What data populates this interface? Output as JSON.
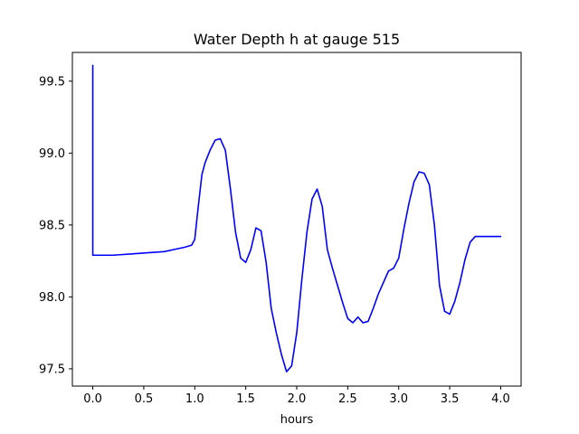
{
  "chart_data": {
    "type": "line",
    "title": "Water Depth h at gauge 515",
    "xlabel": "hours",
    "ylabel": "",
    "xlim": [
      -0.2,
      4.2
    ],
    "ylim": [
      97.38,
      99.7
    ],
    "xticks": [
      0.0,
      0.5,
      1.0,
      1.5,
      2.0,
      2.5,
      3.0,
      3.5,
      4.0
    ],
    "xtick_labels": [
      "0.0",
      "0.5",
      "1.0",
      "1.5",
      "2.0",
      "2.5",
      "3.0",
      "3.5",
      "4.0"
    ],
    "yticks": [
      97.5,
      98.0,
      98.5,
      99.0,
      99.5
    ],
    "ytick_labels": [
      "97.5",
      "98.0",
      "98.5",
      "99.0",
      "99.5"
    ],
    "grid": false,
    "line_color": "#0000ff",
    "series": [
      {
        "name": "",
        "x": [
          0.0,
          0.0,
          0.2,
          0.4,
          0.6,
          0.7,
          0.8,
          0.9,
          0.97,
          1.0,
          1.03,
          1.07,
          1.1,
          1.15,
          1.2,
          1.25,
          1.3,
          1.35,
          1.4,
          1.45,
          1.5,
          1.55,
          1.6,
          1.65,
          1.7,
          1.75,
          1.8,
          1.85,
          1.9,
          1.95,
          2.0,
          2.05,
          2.1,
          2.15,
          2.2,
          2.25,
          2.3,
          2.35,
          2.4,
          2.45,
          2.5,
          2.55,
          2.6,
          2.65,
          2.7,
          2.75,
          2.8,
          2.85,
          2.9,
          2.95,
          3.0,
          3.05,
          3.1,
          3.15,
          3.2,
          3.25,
          3.3,
          3.35,
          3.4,
          3.45,
          3.5,
          3.55,
          3.6,
          3.65,
          3.7,
          3.75,
          3.8,
          3.85,
          3.9,
          3.95,
          4.0
        ],
        "y": [
          99.61,
          98.29,
          98.29,
          98.3,
          98.31,
          98.315,
          98.33,
          98.345,
          98.36,
          98.4,
          98.6,
          98.85,
          98.93,
          99.02,
          99.09,
          99.1,
          99.02,
          98.75,
          98.45,
          98.27,
          98.24,
          98.33,
          98.48,
          98.46,
          98.24,
          97.92,
          97.75,
          97.6,
          97.48,
          97.52,
          97.75,
          98.12,
          98.45,
          98.68,
          98.75,
          98.63,
          98.33,
          98.2,
          98.08,
          97.96,
          97.85,
          97.82,
          97.86,
          97.82,
          97.83,
          97.92,
          98.02,
          98.1,
          98.18,
          98.2,
          98.27,
          98.47,
          98.65,
          98.8,
          98.87,
          98.86,
          98.78,
          98.5,
          98.08,
          97.9,
          97.88,
          97.97,
          98.1,
          98.26,
          98.38,
          98.42,
          98.42,
          98.42,
          98.42,
          98.42,
          98.42
        ]
      }
    ]
  }
}
